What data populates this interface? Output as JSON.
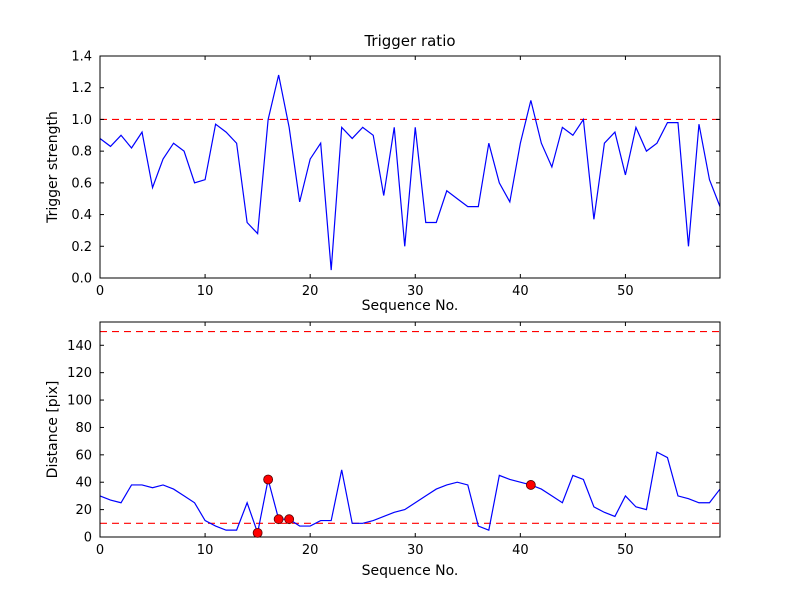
{
  "figure": {
    "background": "#ffffff",
    "axes_color": "#000000",
    "line_color": "#0000ff",
    "threshold_color": "#ff0000",
    "marker_color": "#ff0000"
  },
  "chart_data": [
    {
      "id": "top",
      "type": "line",
      "title": "Trigger ratio",
      "xlabel": "Sequence No.",
      "ylabel": "Trigger strength",
      "xlim": [
        0,
        59
      ],
      "ylim": [
        0,
        1.4
      ],
      "xticks": [
        0,
        10,
        20,
        30,
        40,
        50
      ],
      "xtick_labels": [
        "0",
        "10",
        "20",
        "30",
        "40",
        "50"
      ],
      "yticks": [
        0,
        0.2,
        0.4,
        0.6,
        0.8,
        1.0,
        1.2,
        1.4
      ],
      "ytick_labels": [
        "0.0",
        "0.2",
        "0.4",
        "0.6",
        "0.8",
        "1.0",
        "1.2",
        "1.4"
      ],
      "grid": false,
      "legend": "none",
      "line_color": "#0000ff",
      "hlines": [
        {
          "y": 1.0,
          "color": "#ff0000",
          "style": "dashed"
        }
      ],
      "values": [
        0.88,
        0.83,
        0.9,
        0.82,
        0.92,
        0.57,
        0.75,
        0.85,
        0.8,
        0.6,
        0.62,
        0.97,
        0.92,
        0.85,
        0.35,
        0.28,
        1.0,
        1.28,
        0.95,
        0.48,
        0.75,
        0.85,
        0.05,
        0.95,
        0.88,
        0.95,
        0.9,
        0.52,
        0.95,
        0.2,
        0.95,
        0.35,
        0.35,
        0.55,
        0.5,
        0.45,
        0.45,
        0.85,
        0.6,
        0.48,
        0.85,
        1.12,
        0.85,
        0.7,
        0.95,
        0.9,
        1.0,
        0.37,
        0.85,
        0.92,
        0.65,
        0.95,
        0.8,
        0.85,
        0.98,
        0.98,
        0.2,
        0.97,
        0.62,
        0.45
      ]
    },
    {
      "id": "bottom",
      "type": "line",
      "title": "",
      "xlabel": "Sequence No.",
      "ylabel": "Distance [pix]",
      "xlim": [
        0,
        59
      ],
      "ylim": [
        0,
        157
      ],
      "xticks": [
        0,
        10,
        20,
        30,
        40,
        50
      ],
      "xtick_labels": [
        "0",
        "10",
        "20",
        "30",
        "40",
        "50"
      ],
      "yticks": [
        0,
        20,
        40,
        60,
        80,
        100,
        120,
        140
      ],
      "ytick_labels": [
        "0",
        "20",
        "40",
        "60",
        "80",
        "100",
        "120",
        "140"
      ],
      "grid": false,
      "legend": "none",
      "line_color": "#0000ff",
      "hlines": [
        {
          "y": 150,
          "color": "#ff0000",
          "style": "dashed"
        },
        {
          "y": 10,
          "color": "#ff0000",
          "style": "dashed"
        }
      ],
      "values": [
        30,
        27,
        25,
        38,
        38,
        36,
        38,
        35,
        30,
        25,
        12,
        8,
        5,
        5,
        25,
        3,
        42,
        13,
        13,
        8,
        8,
        12,
        12,
        49,
        10,
        10,
        12,
        15,
        18,
        20,
        25,
        30,
        35,
        38,
        40,
        38,
        8,
        5,
        45,
        42,
        40,
        38,
        35,
        30,
        25,
        45,
        42,
        22,
        18,
        15,
        30,
        22,
        20,
        62,
        58,
        30,
        28,
        25,
        25,
        35
      ],
      "points": [
        {
          "x": 15,
          "y": 3
        },
        {
          "x": 16,
          "y": 42
        },
        {
          "x": 17,
          "y": 13
        },
        {
          "x": 18,
          "y": 13
        },
        {
          "x": 41,
          "y": 38
        }
      ],
      "point_color": "#ff0000"
    }
  ]
}
